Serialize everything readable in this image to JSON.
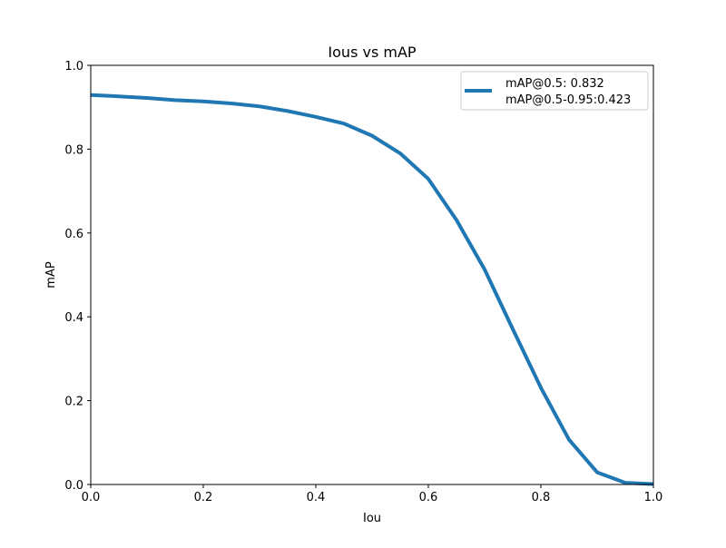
{
  "chart_data": {
    "type": "line",
    "title": "Ious vs mAP",
    "xlabel": "Iou",
    "ylabel": "mAP",
    "xlim": [
      0.0,
      1.0
    ],
    "ylim": [
      0.0,
      1.0
    ],
    "x_ticks": [
      "0.0",
      "0.2",
      "0.4",
      "0.6",
      "0.8",
      "1.0"
    ],
    "y_ticks": [
      "0.0",
      "0.2",
      "0.4",
      "0.6",
      "0.8",
      "1.0"
    ],
    "grid": false,
    "legend_position": "top-right",
    "legend_lines": [
      "mAP@0.5: 0.832",
      "mAP@0.5-0.95:0.423"
    ],
    "series": [
      {
        "color": "#1f77b4",
        "x": [
          0.0,
          0.05,
          0.1,
          0.15,
          0.2,
          0.25,
          0.3,
          0.35,
          0.4,
          0.45,
          0.5,
          0.55,
          0.6,
          0.65,
          0.7,
          0.75,
          0.8,
          0.85,
          0.9,
          0.95,
          1.0
        ],
        "y": [
          0.929,
          0.926,
          0.922,
          0.917,
          0.914,
          0.909,
          0.902,
          0.891,
          0.877,
          0.861,
          0.832,
          0.79,
          0.729,
          0.631,
          0.513,
          0.371,
          0.231,
          0.107,
          0.029,
          0.004,
          0.001
        ]
      }
    ]
  }
}
